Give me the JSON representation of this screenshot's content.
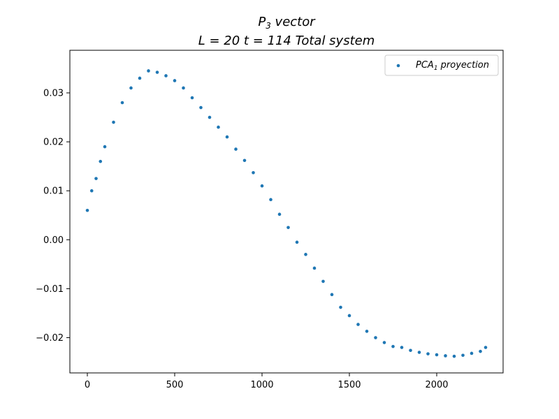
{
  "chart_data": {
    "type": "scatter",
    "title_line1_main": "P",
    "title_line1_sub": "3",
    "title_line1_rest": " vector",
    "title_line2": "L = 20 t = 114 Total system",
    "xlabel": "",
    "ylabel": "",
    "xlim": [
      -100,
      2380
    ],
    "ylim": [
      -0.0272,
      0.0387
    ],
    "x_ticks": [
      0,
      500,
      1000,
      1500,
      2000
    ],
    "x_tick_labels": [
      "0",
      "500",
      "1000",
      "1500",
      "2000"
    ],
    "y_ticks": [
      -0.02,
      -0.01,
      0.0,
      0.01,
      0.02,
      0.03
    ],
    "y_tick_labels": [
      "−0.02",
      "−0.01",
      "0.00",
      "0.01",
      "0.02",
      "0.03"
    ],
    "grid": false,
    "legend_position": "top-right",
    "series": [
      {
        "name_main": "PCA",
        "name_sub": "1",
        "name_rest": " proyection",
        "color": "#1f77b4",
        "x": [
          0,
          25,
          50,
          75,
          100,
          150,
          200,
          250,
          300,
          350,
          400,
          450,
          500,
          550,
          600,
          650,
          700,
          750,
          800,
          850,
          900,
          950,
          1000,
          1050,
          1100,
          1150,
          1200,
          1250,
          1300,
          1350,
          1400,
          1450,
          1500,
          1550,
          1600,
          1650,
          1700,
          1750,
          1800,
          1850,
          1900,
          1950,
          2000,
          2050,
          2100,
          2150,
          2200,
          2250,
          2280
        ],
        "y": [
          0.006,
          0.01,
          0.0125,
          0.016,
          0.019,
          0.024,
          0.028,
          0.031,
          0.033,
          0.0345,
          0.0342,
          0.0335,
          0.0325,
          0.031,
          0.029,
          0.027,
          0.025,
          0.023,
          0.021,
          0.0185,
          0.0162,
          0.0137,
          0.011,
          0.0082,
          0.0052,
          0.0025,
          -0.0005,
          -0.003,
          -0.0058,
          -0.0085,
          -0.0112,
          -0.0138,
          -0.0155,
          -0.0173,
          -0.0187,
          -0.02,
          -0.021,
          -0.0218,
          -0.022,
          -0.0226,
          -0.023,
          -0.0233,
          -0.0235,
          -0.0237,
          -0.0238,
          -0.0236,
          -0.0232,
          -0.0228,
          -0.022
        ]
      }
    ]
  }
}
